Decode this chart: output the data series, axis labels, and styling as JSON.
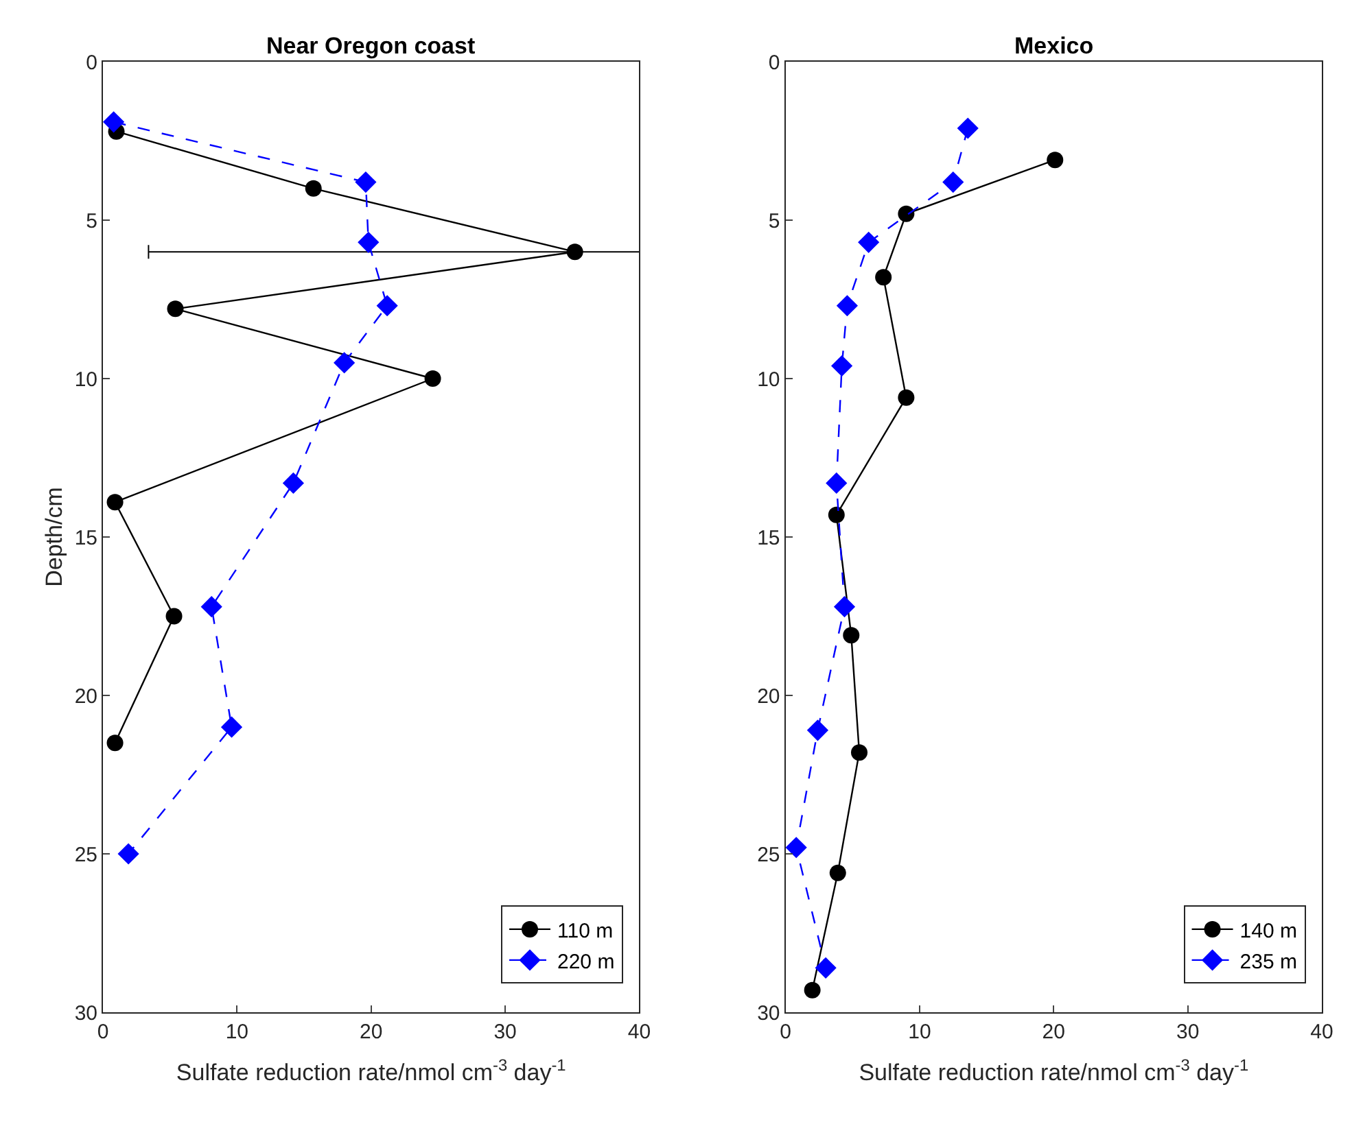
{
  "chart_data": [
    {
      "type": "line",
      "title": "Near Oregon coast",
      "xlabel": "Sulfate reduction rate/nmol cm$^{-3}$ day$^{-1}$",
      "ylabel": "Depth/cm",
      "xlim": [
        0,
        40
      ],
      "xticks": [
        0,
        10,
        20,
        30,
        40
      ],
      "ylim": [
        30,
        0
      ],
      "yticks": [
        0,
        5,
        10,
        15,
        20,
        25,
        30
      ],
      "legend": "bottom right",
      "series": [
        {
          "name": "110 m",
          "color": "#000000",
          "marker": "circle",
          "line_style": "solid",
          "x": [
            1,
            15.7,
            35.2,
            5.4,
            24.6,
            0.9,
            5.3,
            0.9
          ],
          "values": [
            2.2,
            4.0,
            6.0,
            7.8,
            10.0,
            13.9,
            17.5,
            21.5
          ],
          "xerrors": [
            null,
            null,
            31.8,
            null,
            null,
            null,
            null,
            null
          ]
        },
        {
          "name": "220 m",
          "color": "#0000ff",
          "marker": "diamond",
          "line_style": "dashed",
          "x": [
            0.8,
            19.6,
            19.8,
            21.2,
            18.0,
            14.2,
            8.1,
            9.6,
            1.9
          ],
          "values": [
            1.9,
            3.8,
            5.7,
            7.7,
            9.5,
            13.3,
            17.2,
            21.0,
            25.0
          ]
        }
      ]
    },
    {
      "type": "line",
      "title": "Mexico",
      "xlabel": "Sulfate reduction rate/nmol cm$^{-3}$ day$^{-1}$",
      "xlim": [
        0,
        40
      ],
      "xticks": [
        0,
        10,
        20,
        30,
        40
      ],
      "ylim": [
        30,
        0
      ],
      "yticks": [
        0,
        5,
        10,
        15,
        20,
        25,
        30
      ],
      "legend": "bottom right",
      "series": [
        {
          "name": "140 m",
          "color": "#000000",
          "marker": "circle",
          "line_style": "solid",
          "x": [
            20.1,
            9.0,
            7.3,
            9.0,
            3.8,
            4.9,
            5.5,
            3.9,
            2.0
          ],
          "values": [
            3.1,
            4.8,
            6.8,
            10.6,
            14.3,
            18.1,
            21.8,
            25.6,
            29.3
          ]
        },
        {
          "name": "235 m",
          "color": "#0000ff",
          "marker": "diamond",
          "line_style": "dashed",
          "x": [
            13.6,
            12.5,
            6.2,
            4.6,
            4.2,
            3.8,
            4.4,
            2.4,
            0.8,
            3.0
          ],
          "values": [
            2.1,
            3.8,
            5.7,
            7.7,
            9.6,
            13.3,
            17.2,
            21.1,
            24.8,
            28.6
          ]
        }
      ]
    }
  ]
}
